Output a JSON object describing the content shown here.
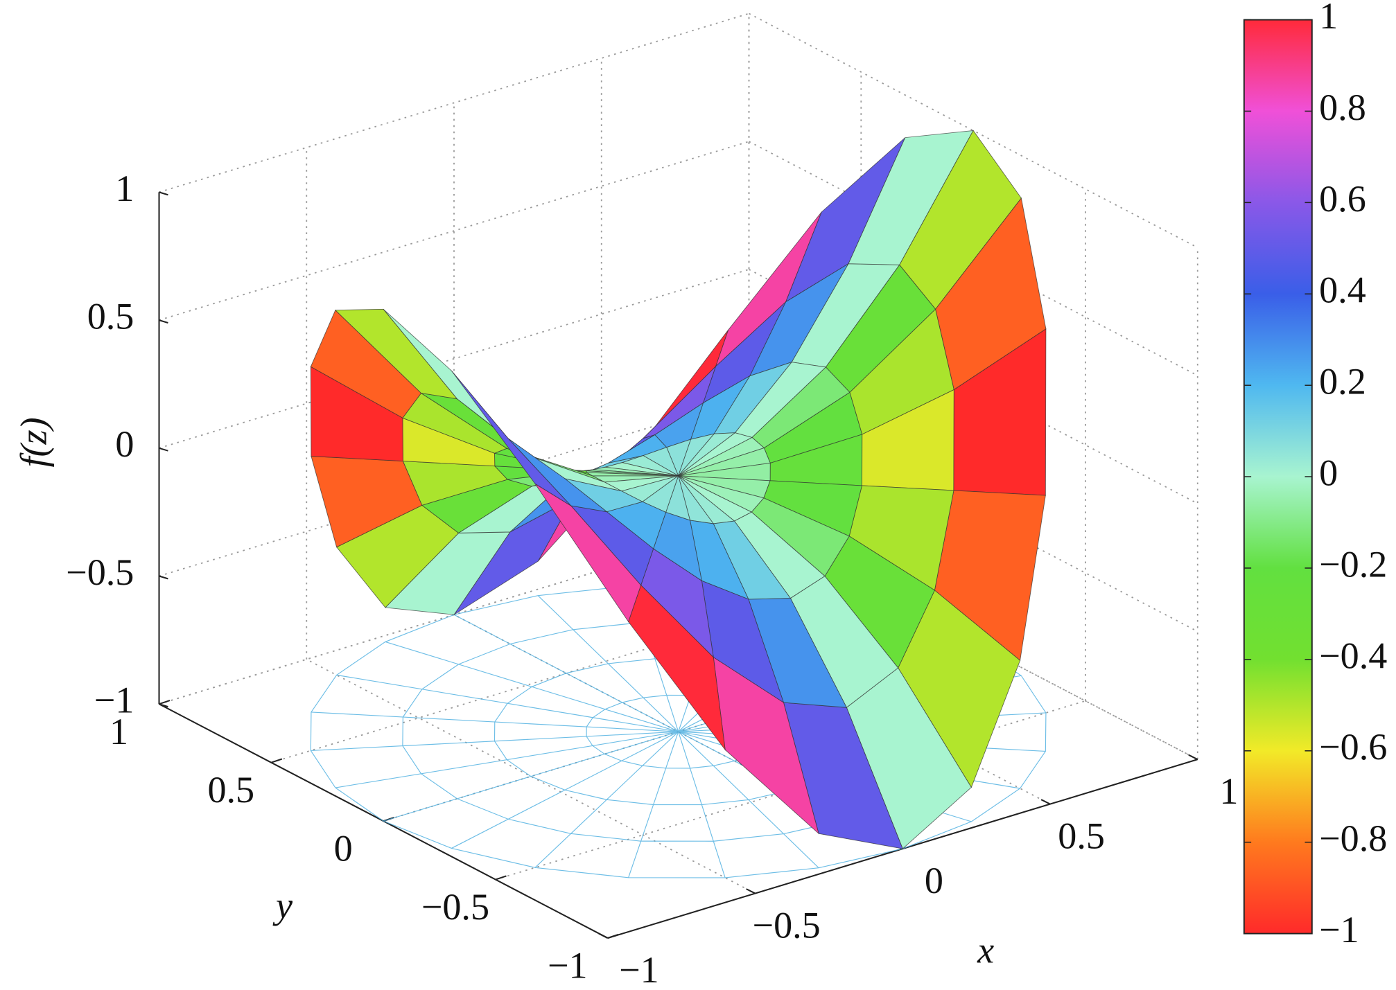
{
  "chart_data": {
    "type": "surface",
    "xlabel": "x",
    "ylabel": "y",
    "zlabel": "f(z)",
    "xlim": [
      -1,
      1
    ],
    "xticks": [
      {
        "value": -1,
        "label": "−1"
      },
      {
        "value": -0.5,
        "label": "−0.5"
      },
      0,
      0.5,
      1
    ],
    "ylim": [
      -1,
      1
    ],
    "yticks": [
      {
        "value": -1,
        "label": "−1"
      },
      {
        "value": -0.5,
        "label": "−0.5"
      },
      0,
      0.5,
      1
    ],
    "zlim": [
      -1,
      1
    ],
    "zticks": [
      {
        "value": -1,
        "label": "−1"
      },
      {
        "value": -0.5,
        "label": "−0.5"
      },
      0,
      0.5,
      1
    ],
    "r": [
      0,
      0.25,
      0.5,
      0.75,
      1
    ],
    "theta": [
      0,
      15,
      30,
      45,
      60,
      75,
      90,
      105,
      120,
      135,
      150,
      165,
      180,
      195,
      210,
      225,
      240,
      255,
      270,
      285,
      300,
      315,
      330,
      345
    ],
    "z": [
      [
        0,
        0,
        0,
        0,
        0,
        0,
        0,
        0,
        0,
        0,
        0,
        0,
        0,
        0,
        0,
        0,
        0,
        0,
        0,
        0,
        0,
        0,
        0,
        0
      ],
      [
        0.0625,
        0.0541,
        0.0313,
        0,
        -0.0313,
        -0.0541,
        -0.0625,
        -0.0541,
        -0.0313,
        0,
        0.0313,
        0.0541,
        0.0625,
        0.0541,
        0.0313,
        0,
        -0.0313,
        -0.0541,
        -0.0625,
        -0.0541,
        -0.0313,
        0,
        0.0313,
        0.0541
      ],
      [
        0.25,
        0.2165,
        0.125,
        0,
        -0.125,
        -0.2165,
        -0.25,
        -0.2165,
        -0.125,
        0,
        0.125,
        0.2165,
        0.25,
        0.2165,
        0.125,
        0,
        -0.125,
        -0.2165,
        -0.25,
        -0.2165,
        -0.125,
        0,
        0.125,
        0.2165
      ],
      [
        0.5625,
        0.4871,
        0.2813,
        0,
        -0.2813,
        -0.4871,
        -0.5625,
        -0.4871,
        -0.2813,
        0,
        0.2813,
        0.4871,
        0.5625,
        0.4871,
        0.2813,
        0,
        -0.2813,
        -0.4871,
        -0.5625,
        -0.4871,
        -0.2813,
        0,
        0.2813,
        0.4871
      ],
      [
        1,
        0.866,
        0.5,
        0,
        -0.5,
        -0.866,
        -1,
        -0.866,
        -0.5,
        0,
        0.5,
        0.866,
        1,
        0.866,
        0.5,
        0,
        -0.5,
        -0.866,
        -1,
        -0.866,
        -0.5,
        0,
        0.5,
        0.866
      ]
    ],
    "color": [
      [
        0,
        0,
        0,
        0,
        0,
        0,
        0,
        0,
        0,
        0,
        0,
        0,
        0,
        0,
        0,
        0,
        0,
        0,
        0,
        0,
        0,
        0,
        0,
        0
      ],
      [
        0,
        0.0313,
        0.0541,
        0.0625,
        0.0541,
        0.0313,
        0,
        -0.0313,
        -0.0541,
        -0.0625,
        -0.0541,
        -0.0313,
        0,
        0.0313,
        0.0541,
        0.0625,
        0.0541,
        0.0313,
        0,
        -0.0313,
        -0.0541,
        -0.0625,
        -0.0541,
        -0.0313
      ],
      [
        0,
        0.125,
        0.2165,
        0.25,
        0.2165,
        0.125,
        0,
        -0.125,
        -0.2165,
        -0.25,
        -0.2165,
        -0.125,
        0,
        0.125,
        0.2165,
        0.25,
        0.2165,
        0.125,
        0,
        -0.125,
        -0.2165,
        -0.25,
        -0.2165,
        -0.125
      ],
      [
        0,
        0.2813,
        0.4871,
        0.5625,
        0.4871,
        0.2813,
        0,
        -0.2813,
        -0.4871,
        -0.5625,
        -0.4871,
        -0.2813,
        0,
        0.2813,
        0.4871,
        0.5625,
        0.4871,
        0.2813,
        0,
        -0.2813,
        -0.4871,
        -0.5625,
        -0.4871,
        -0.2813
      ],
      [
        0,
        0.5,
        0.866,
        1,
        0.866,
        0.5,
        0,
        -0.5,
        -0.866,
        -1,
        -0.866,
        -0.5,
        0,
        0.5,
        0.866,
        1,
        0.866,
        0.5,
        0,
        -0.5,
        -0.866,
        -1,
        -0.866,
        -0.5
      ]
    ],
    "clim": [
      -1,
      1
    ],
    "cticks": [
      {
        "value": -1,
        "label": "−1"
      },
      {
        "value": -0.8,
        "label": "−0.8"
      },
      {
        "value": -0.6,
        "label": "−0.6"
      },
      {
        "value": -0.4,
        "label": "−0.4"
      },
      {
        "value": -0.2,
        "label": "−0.2"
      },
      0,
      0.2,
      0.4,
      0.6,
      0.8,
      1
    ],
    "colormap": [
      "#ff2a2a",
      "#ff7a1e",
      "#f2ea28",
      "#72e030",
      "#62e040",
      "#a8f4d0",
      "#4fb8f0",
      "#3a5ee8",
      "#8a58e8",
      "#f050d8",
      "#ff2a3a"
    ],
    "floor_color": "#4aaee0",
    "mesh_color": "#303030",
    "grid": true
  }
}
